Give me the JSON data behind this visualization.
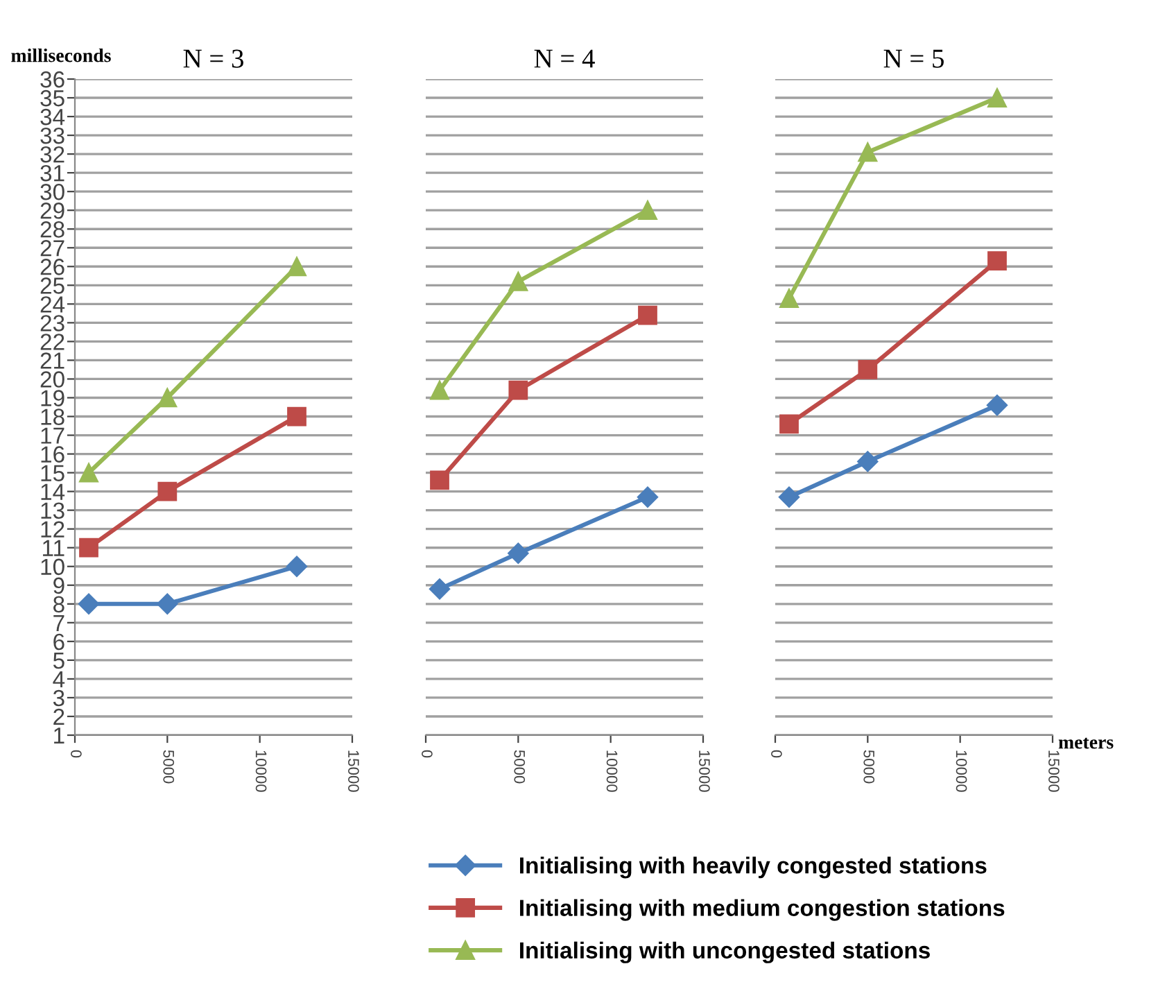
{
  "chart_data": [
    {
      "type": "line",
      "title": "N = 3",
      "ylabel": "milliseconds",
      "x": [
        750,
        5000,
        12000
      ],
      "xlim": [
        0,
        15000
      ],
      "xticks": [
        0,
        5000,
        10000,
        15000
      ],
      "ylim": [
        1,
        36
      ],
      "yticks": [
        1,
        2,
        3,
        4,
        5,
        6,
        7,
        8,
        9,
        10,
        11,
        12,
        13,
        14,
        15,
        16,
        17,
        18,
        19,
        20,
        21,
        22,
        23,
        24,
        25,
        26,
        27,
        28,
        29,
        30,
        31,
        32,
        33,
        34,
        35,
        36
      ],
      "grid": "y",
      "legend": "bottom",
      "series": [
        {
          "name": "Initialising with heavily congested stations",
          "color": "#4a7ebb",
          "marker": "diamond",
          "values": [
            8,
            8,
            10
          ]
        },
        {
          "name": "Initialising with medium congestion stations",
          "color": "#be4b48",
          "marker": "square",
          "values": [
            11,
            14,
            18
          ]
        },
        {
          "name": "Initialising with uncongested stations",
          "color": "#98b954",
          "marker": "triangle",
          "values": [
            15,
            19,
            26
          ]
        }
      ]
    },
    {
      "type": "line",
      "title": "N = 4",
      "x": [
        750,
        5000,
        12000
      ],
      "xlim": [
        0,
        15000
      ],
      "xticks": [
        0,
        5000,
        10000,
        15000
      ],
      "ylim": [
        1,
        36
      ],
      "yticks": [
        1,
        2,
        3,
        4,
        5,
        6,
        7,
        8,
        9,
        10,
        11,
        12,
        13,
        14,
        15,
        16,
        17,
        18,
        19,
        20,
        21,
        22,
        23,
        24,
        25,
        26,
        27,
        28,
        29,
        30,
        31,
        32,
        33,
        34,
        35,
        36
      ],
      "grid": "y",
      "tick_labels": "x",
      "series": [
        {
          "color": "#4a7ebb",
          "marker": "diamond",
          "values": [
            8.8,
            10.7,
            13.7
          ]
        },
        {
          "color": "#be4b48",
          "marker": "square",
          "values": [
            14.6,
            19.4,
            23.4
          ]
        },
        {
          "color": "#98b954",
          "marker": "triangle",
          "values": [
            19.4,
            25.2,
            29.0
          ]
        }
      ]
    },
    {
      "type": "line",
      "title": "N = 5",
      "xlabel": "meters",
      "x": [
        750,
        5000,
        12000
      ],
      "xlim": [
        0,
        15000
      ],
      "xticks": [
        0,
        5000,
        10000,
        15000
      ],
      "ylim": [
        1,
        36
      ],
      "yticks": [
        1,
        2,
        3,
        4,
        5,
        6,
        7,
        8,
        9,
        10,
        11,
        12,
        13,
        14,
        15,
        16,
        17,
        18,
        19,
        20,
        21,
        22,
        23,
        24,
        25,
        26,
        27,
        28,
        29,
        30,
        31,
        32,
        33,
        34,
        35,
        36
      ],
      "grid": "y",
      "tick_labels": "x",
      "series": [
        {
          "color": "#4a7ebb",
          "marker": "diamond",
          "values": [
            13.7,
            15.6,
            18.6
          ]
        },
        {
          "color": "#be4b48",
          "marker": "square",
          "values": [
            17.6,
            20.5,
            26.3
          ]
        },
        {
          "color": "#98b954",
          "marker": "triangle",
          "values": [
            24.3,
            32.1,
            35.0
          ]
        }
      ]
    }
  ]
}
